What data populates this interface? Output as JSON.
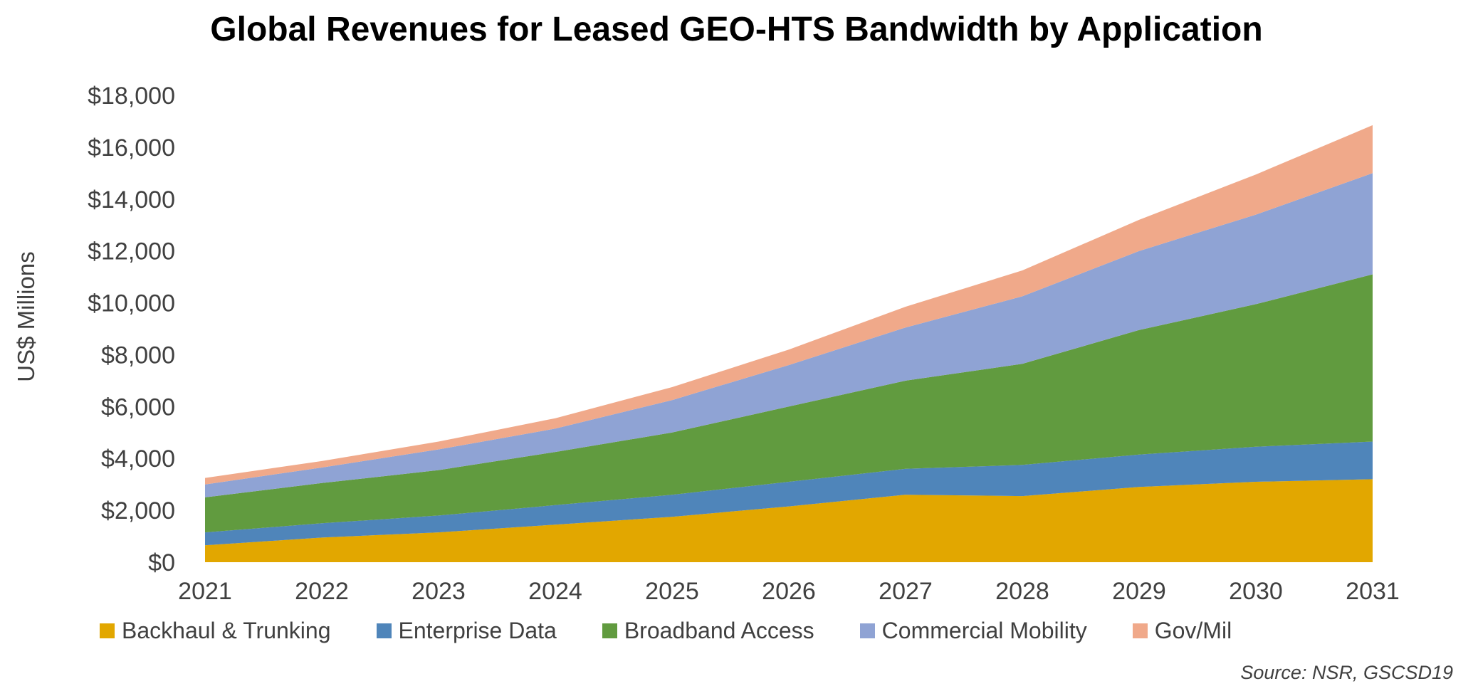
{
  "chart_data": {
    "type": "area",
    "stacked": true,
    "title": "Global Revenues for Leased GEO-HTS Bandwidth by Application",
    "xlabel": "",
    "ylabel": "US$ Millions",
    "x": [
      "2021",
      "2022",
      "2023",
      "2024",
      "2025",
      "2026",
      "2027",
      "2028",
      "2029",
      "2030",
      "2031"
    ],
    "ylim": [
      0,
      18000
    ],
    "yticks": [
      0,
      2000,
      4000,
      6000,
      8000,
      10000,
      12000,
      14000,
      16000,
      18000
    ],
    "ytick_labels": [
      "$0",
      "$2,000",
      "$4,000",
      "$6,000",
      "$8,000",
      "$10,000",
      "$12,000",
      "$14,000",
      "$16,000",
      "$18,000"
    ],
    "grid": false,
    "legend_position": "bottom",
    "series": [
      {
        "name": "Backhaul & Trunking",
        "color": "#E2A700",
        "values": [
          650,
          950,
          1150,
          1450,
          1750,
          2150,
          2600,
          2550,
          2900,
          3100,
          3200
        ]
      },
      {
        "name": "Enterprise Data",
        "color": "#4F85BA",
        "values": [
          500,
          550,
          650,
          750,
          850,
          950,
          1000,
          1200,
          1250,
          1350,
          1450
        ]
      },
      {
        "name": "Broadband Access",
        "color": "#619B3F",
        "values": [
          1350,
          1550,
          1750,
          2050,
          2400,
          2900,
          3400,
          3900,
          4800,
          5500,
          6450
        ]
      },
      {
        "name": "Commercial Mobility",
        "color": "#8FA3D4",
        "values": [
          500,
          600,
          800,
          900,
          1250,
          1600,
          2050,
          2600,
          3050,
          3450,
          3900
        ]
      },
      {
        "name": "Gov/Mil",
        "color": "#F0A98A",
        "values": [
          250,
          250,
          300,
          400,
          500,
          600,
          800,
          1000,
          1200,
          1550,
          1850
        ]
      }
    ]
  },
  "source": "Source: NSR, GSCSD19"
}
